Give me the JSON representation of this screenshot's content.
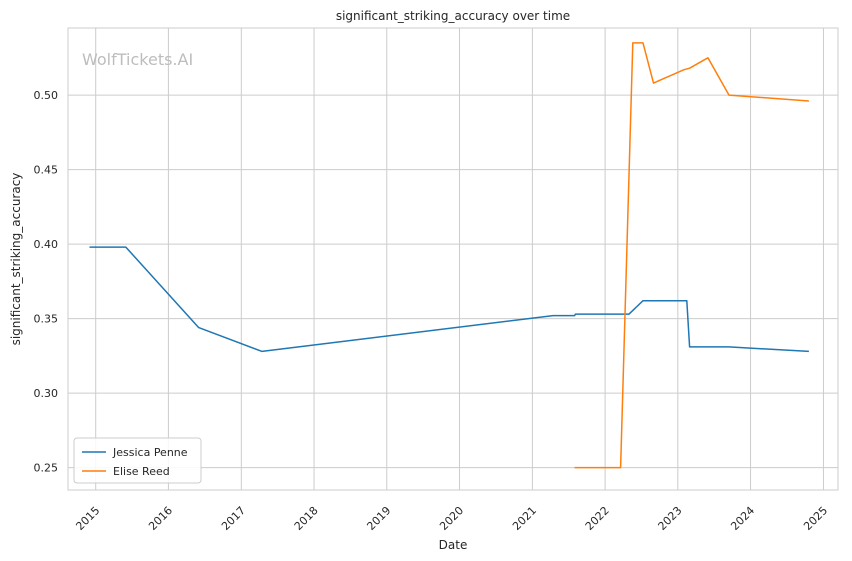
{
  "chart_data": {
    "type": "line",
    "title": "significant_striking_accuracy over time",
    "xlabel": "Date",
    "ylabel": "significant_striking_accuracy",
    "watermark": "WolfTickets.AI",
    "x_tick_labels": [
      "2015",
      "2016",
      "2017",
      "2018",
      "2019",
      "2020",
      "2021",
      "2022",
      "2023",
      "2024",
      "2025"
    ],
    "y_tick_labels": [
      "0.25",
      "0.30",
      "0.35",
      "0.40",
      "0.45",
      "0.50"
    ],
    "y_ticks": [
      0.25,
      0.3,
      0.35,
      0.4,
      0.45,
      0.5
    ],
    "xlim": [
      "2014-08-15",
      "2025-03-15"
    ],
    "ylim": [
      0.235,
      0.545
    ],
    "grid": true,
    "legend_position": "lower-left",
    "series": [
      {
        "name": "Jessica Penne",
        "color": "#1f77b4",
        "points": [
          [
            "2014-12-01",
            0.398
          ],
          [
            "2015-06-01",
            0.398
          ],
          [
            "2016-06-01",
            0.344
          ],
          [
            "2017-04-15",
            0.328
          ],
          [
            "2021-04-15",
            0.352
          ],
          [
            "2021-08-01",
            0.352
          ],
          [
            "2021-08-05",
            0.353
          ],
          [
            "2022-05-01",
            0.353
          ],
          [
            "2022-07-10",
            0.362
          ],
          [
            "2023-02-15",
            0.362
          ],
          [
            "2023-03-01",
            0.331
          ],
          [
            "2023-09-15",
            0.331
          ],
          [
            "2024-10-20",
            0.328
          ]
        ]
      },
      {
        "name": "Elise Reed",
        "color": "#ff7f0e",
        "points": [
          [
            "2021-08-01",
            0.25
          ],
          [
            "2022-03-20",
            0.25
          ],
          [
            "2022-05-20",
            0.535
          ],
          [
            "2022-07-10",
            0.535
          ],
          [
            "2022-09-01",
            0.508
          ],
          [
            "2023-02-01",
            0.517
          ],
          [
            "2023-03-01",
            0.518
          ],
          [
            "2023-06-01",
            0.525
          ],
          [
            "2023-09-15",
            0.5
          ],
          [
            "2024-10-20",
            0.496
          ]
        ]
      }
    ]
  }
}
